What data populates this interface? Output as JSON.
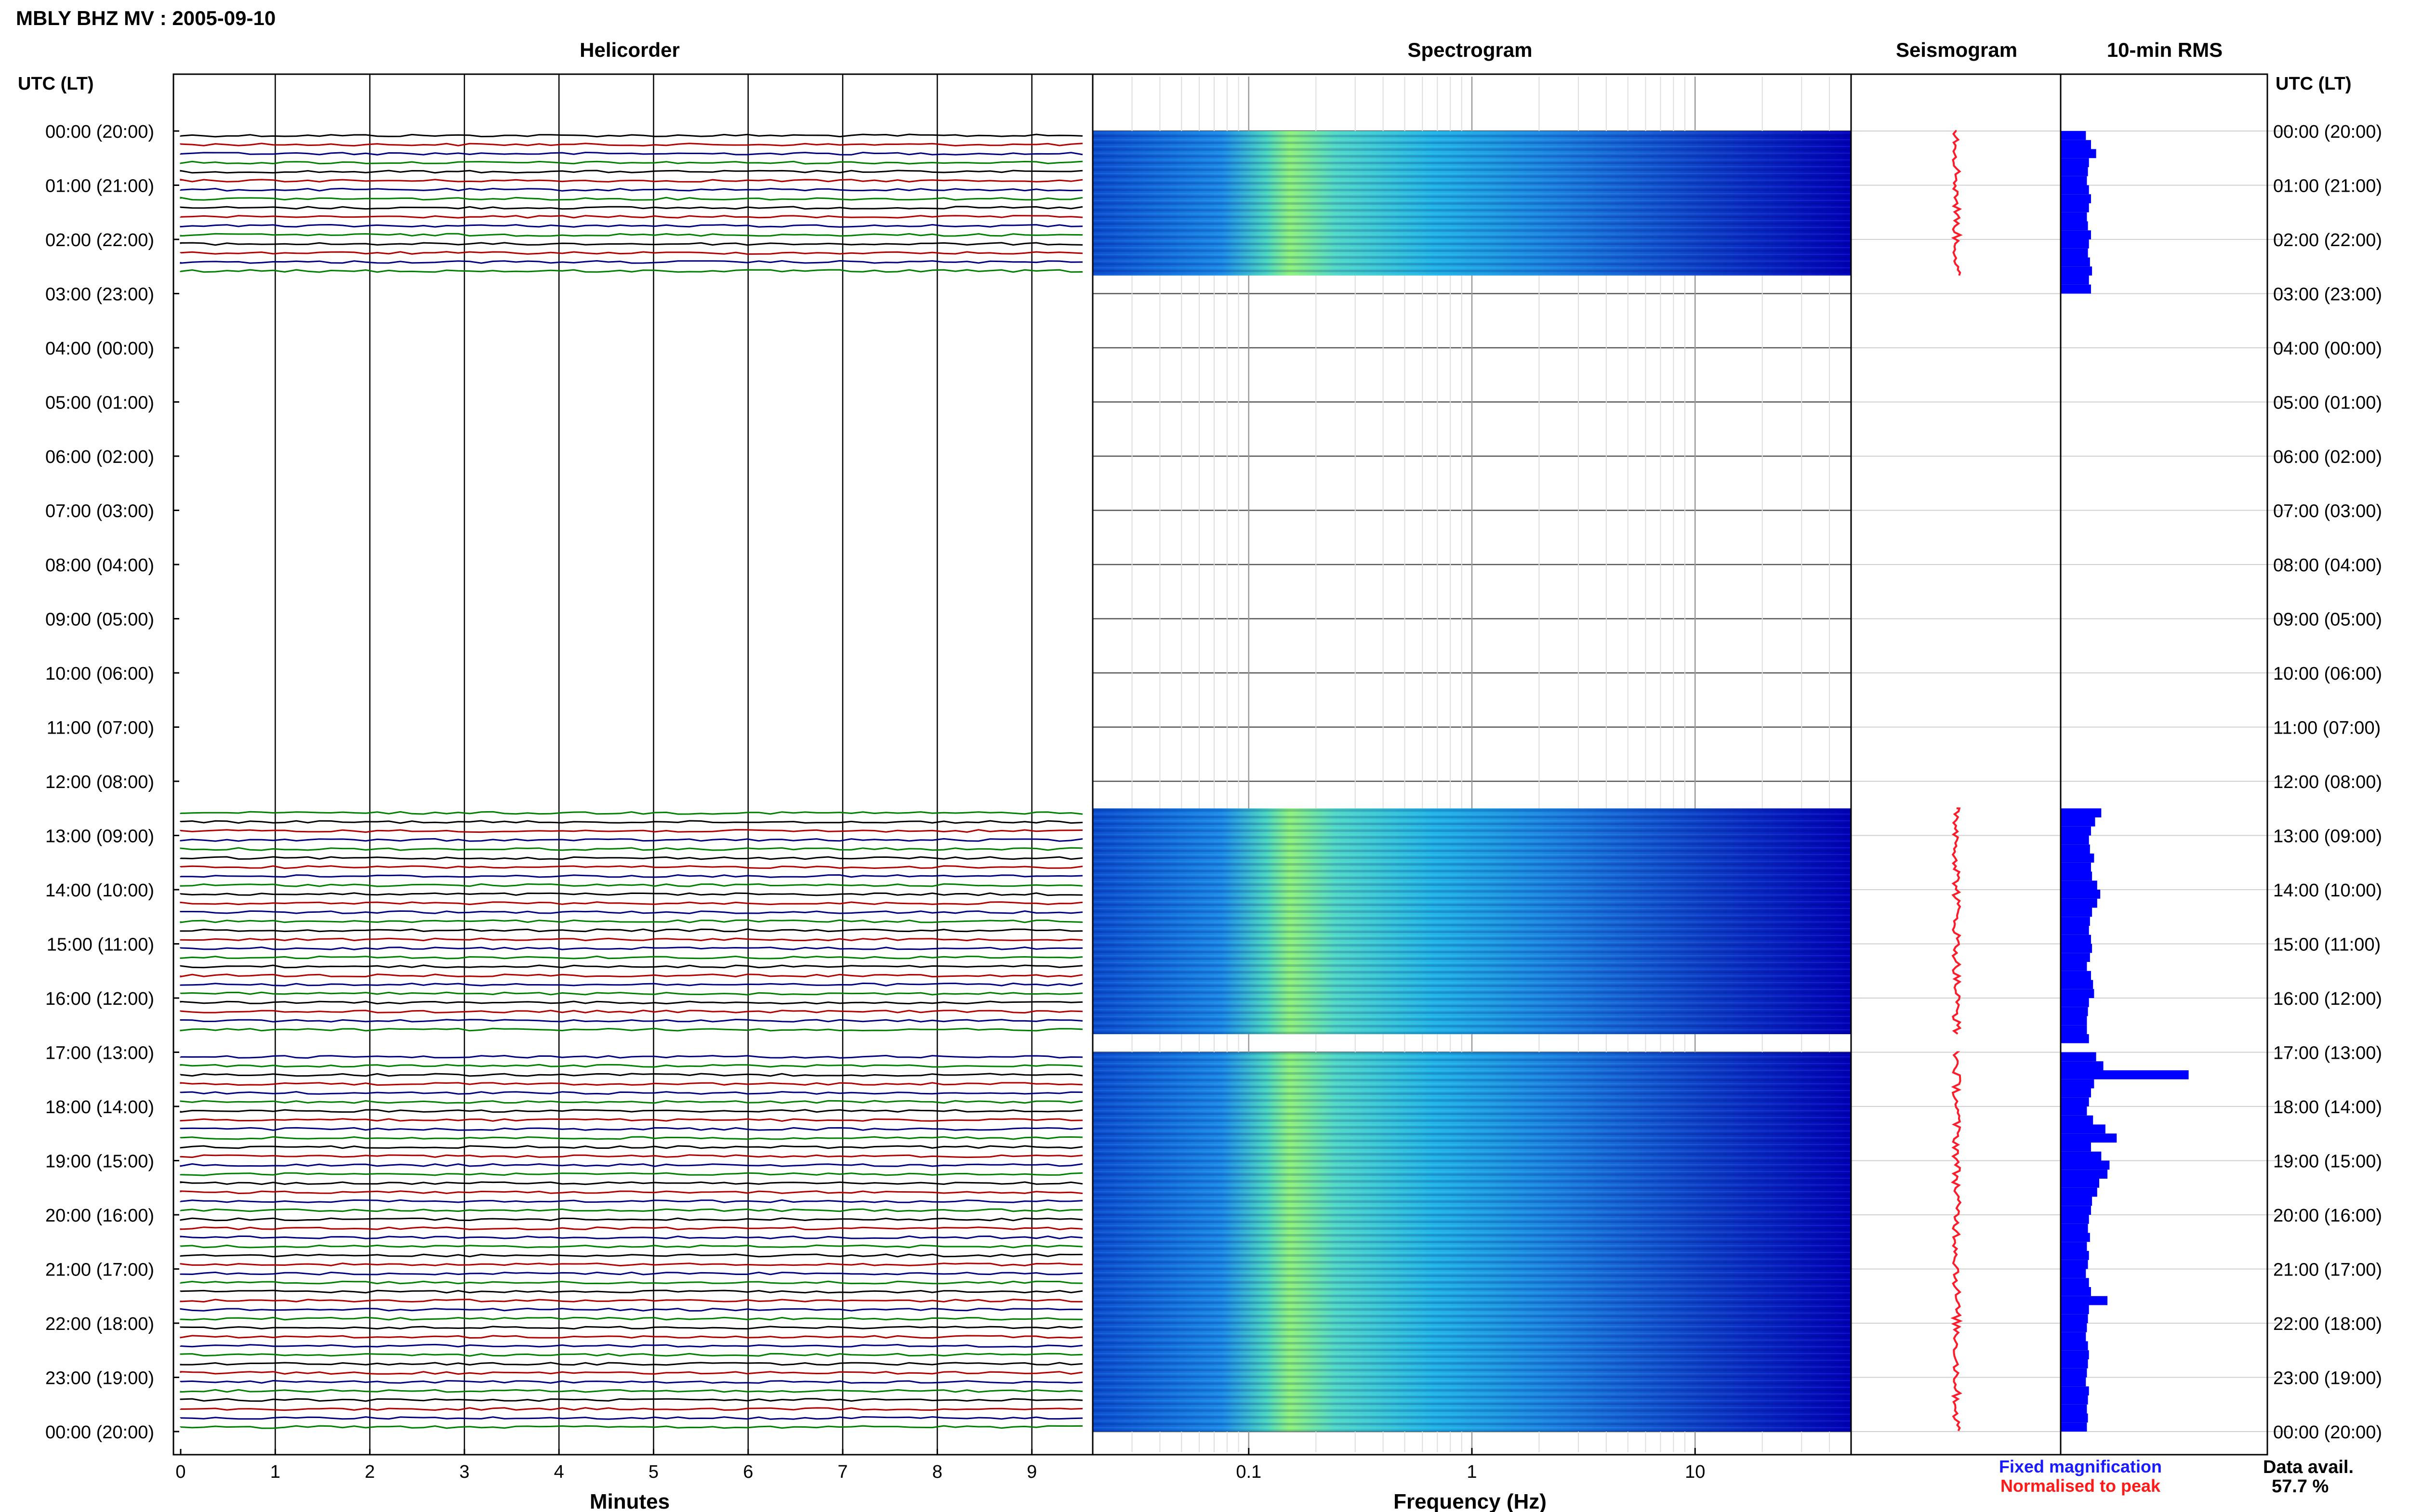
{
  "header": {
    "station_title": "MBLY BHZ MV : 2005-09-10"
  },
  "panels": {
    "helicorder": "Helicorder",
    "spectrogram": "Spectrogram",
    "seismogram": "Seismogram",
    "rms": "10-min RMS"
  },
  "axes": {
    "left_time_label": "UTC (LT)",
    "right_time_label": "UTC (LT)",
    "minutes_xlabel": "Minutes",
    "frequency_xlabel": "Frequency (Hz)",
    "minute_ticks": [
      "0",
      "1",
      "2",
      "3",
      "4",
      "5",
      "6",
      "7",
      "8",
      "9"
    ],
    "frequency_ticks": [
      "0.1",
      "1",
      "10"
    ],
    "hour_labels": [
      "00:00 (20:00)",
      "01:00 (21:00)",
      "02:00 (22:00)",
      "03:00 (23:00)",
      "04:00 (00:00)",
      "05:00 (01:00)",
      "06:00 (02:00)",
      "07:00 (03:00)",
      "08:00 (04:00)",
      "09:00 (05:00)",
      "10:00 (06:00)",
      "11:00 (07:00)",
      "12:00 (08:00)",
      "13:00 (09:00)",
      "14:00 (10:00)",
      "15:00 (11:00)",
      "16:00 (12:00)",
      "17:00 (13:00)",
      "18:00 (14:00)",
      "19:00 (15:00)",
      "20:00 (16:00)",
      "21:00 (17:00)",
      "22:00 (18:00)",
      "23:00 (19:00)",
      "00:00 (20:00)"
    ]
  },
  "legend": {
    "fixed_magnification": "Fixed magnification",
    "normalised_to_peak": "Normalised to peak",
    "fixed_color": "#1a1aff",
    "normalised_color": "#ff1a1a"
  },
  "data_availability": {
    "label": "Data avail.",
    "value": "57.7 %"
  },
  "colors": {
    "trace_colors": [
      "#000000",
      "#b00000",
      "#00007f",
      "#007f00"
    ],
    "rms_bar": "#0000ff",
    "spectrogram_low": "#0000b4",
    "spectrogram_high": "#80ff60"
  },
  "chart_data": {
    "type": "heatmap",
    "date": "2005-09-10",
    "station": "MBLY BHZ MV",
    "x_minutes_range": [
      0,
      10
    ],
    "frequency_range_hz": [
      0.02,
      50
    ],
    "frequency_scale": "log",
    "data_segments_utc": [
      {
        "start": "00:00",
        "end": "02:40"
      },
      {
        "start": "12:30",
        "end": "16:40"
      },
      {
        "start": "17:00",
        "end": "24:00"
      }
    ],
    "rms_10min": {
      "unit": "relative",
      "values": [
        0.25,
        0.3,
        0.35,
        0.28,
        0.27,
        0.26,
        0.28,
        0.3,
        0.28,
        0.26,
        0.27,
        0.3,
        0.28,
        0.27,
        0.29,
        0.31,
        0.28,
        0.3,
        null,
        null,
        null,
        null,
        null,
        null,
        null,
        null,
        null,
        null,
        null,
        null,
        null,
        null,
        null,
        null,
        null,
        null,
        null,
        null,
        null,
        null,
        null,
        null,
        null,
        null,
        null,
        null,
        null,
        null,
        null,
        null,
        null,
        null,
        null,
        null,
        null,
        null,
        null,
        null,
        null,
        null,
        null,
        null,
        null,
        null,
        null,
        null,
        null,
        null,
        null,
        null,
        null,
        null,
        null,
        null,
        null,
        0.4,
        0.34,
        0.3,
        0.28,
        0.29,
        0.33,
        0.3,
        0.31,
        0.36,
        0.39,
        0.36,
        0.31,
        0.29,
        0.28,
        0.3,
        0.31,
        0.29,
        0.26,
        0.3,
        0.32,
        0.33,
        0.28,
        0.27,
        0.26,
        0.26,
        0.28,
        null,
        0.35,
        0.42,
        1.25,
        0.33,
        0.3,
        0.28,
        0.26,
        0.32,
        0.44,
        0.55,
        0.3,
        0.4,
        0.48,
        0.46,
        0.38,
        0.36,
        0.31,
        0.3,
        0.28,
        0.27,
        0.29,
        0.26,
        0.28,
        0.27,
        0.25,
        0.28,
        0.3,
        0.46,
        0.28,
        0.27,
        0.26,
        0.25,
        0.27,
        0.28,
        0.27,
        0.26,
        0.25,
        0.28,
        0.27,
        0.26,
        0.27,
        0.26
      ]
    }
  }
}
